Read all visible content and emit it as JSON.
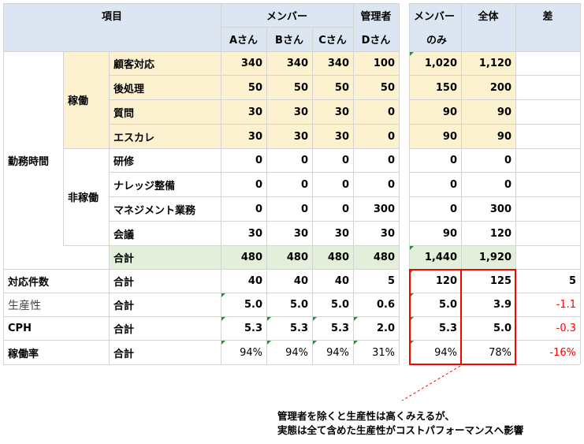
{
  "header": {
    "item": "項目",
    "members": "メンバー",
    "manager": "管理者",
    "members_only": [
      "メンバー",
      "のみ"
    ],
    "total": "全体",
    "diff": "差",
    "cols": [
      "Aさん",
      "Bさん",
      "Cさん",
      "Dさん"
    ]
  },
  "groups": {
    "work_time": "勤務時間",
    "operating": "稼働",
    "non_operating": "非稼働"
  },
  "rows": [
    {
      "label": "顧客対応",
      "a": "340",
      "b": "340",
      "c": "340",
      "d": "100",
      "mo": "1,020",
      "all": "1,120",
      "diff": ""
    },
    {
      "label": "後処理",
      "a": "50",
      "b": "50",
      "c": "50",
      "d": "50",
      "mo": "150",
      "all": "200",
      "diff": ""
    },
    {
      "label": "質問",
      "a": "30",
      "b": "30",
      "c": "30",
      "d": "0",
      "mo": "90",
      "all": "90",
      "diff": ""
    },
    {
      "label": "エスカレ",
      "a": "30",
      "b": "30",
      "c": "30",
      "d": "0",
      "mo": "90",
      "all": "90",
      "diff": ""
    },
    {
      "label": "研修",
      "a": "0",
      "b": "0",
      "c": "0",
      "d": "0",
      "mo": "0",
      "all": "0",
      "diff": ""
    },
    {
      "label": "ナレッジ整備",
      "a": "0",
      "b": "0",
      "c": "0",
      "d": "0",
      "mo": "0",
      "all": "0",
      "diff": ""
    },
    {
      "label": "マネジメント業務",
      "a": "0",
      "b": "0",
      "c": "0",
      "d": "300",
      "mo": "0",
      "all": "300",
      "diff": ""
    },
    {
      "label": "会議",
      "a": "30",
      "b": "30",
      "c": "30",
      "d": "30",
      "mo": "90",
      "all": "120",
      "diff": ""
    },
    {
      "label": "合計",
      "a": "480",
      "b": "480",
      "c": "480",
      "d": "480",
      "mo": "1,440",
      "all": "1,920",
      "diff": ""
    }
  ],
  "metrics": [
    {
      "name": "対応件数",
      "label": "合計",
      "a": "40",
      "b": "40",
      "c": "40",
      "d": "5",
      "mo": "120",
      "all": "125",
      "diff": "5"
    },
    {
      "name": "生産性",
      "label": "合計",
      "a": "5.0",
      "b": "5.0",
      "c": "5.0",
      "d": "0.6",
      "mo": "5.0",
      "all": "3.9",
      "diff": "-1.1"
    },
    {
      "name": "CPH",
      "label": "合計",
      "a": "5.3",
      "b": "5.3",
      "c": "5.3",
      "d": "2.0",
      "mo": "5.3",
      "all": "5.0",
      "diff": "-0.3"
    },
    {
      "name": "稼働率",
      "label": "合計",
      "a": "94%",
      "b": "94%",
      "c": "94%",
      "d": "31%",
      "mo": "94%",
      "all": "78%",
      "diff": "-16%"
    }
  ],
  "callout": [
    "管理者を除くと生産性は高くみえるが、",
    "実態は全て含めた生産性がコストパフォーマンスへ影響"
  ],
  "colors": {
    "header_bg": "#dce6f2",
    "operating_bg": "#fdf2d0",
    "total_bg": "#e3efda",
    "highlight": "#ff0000"
  }
}
